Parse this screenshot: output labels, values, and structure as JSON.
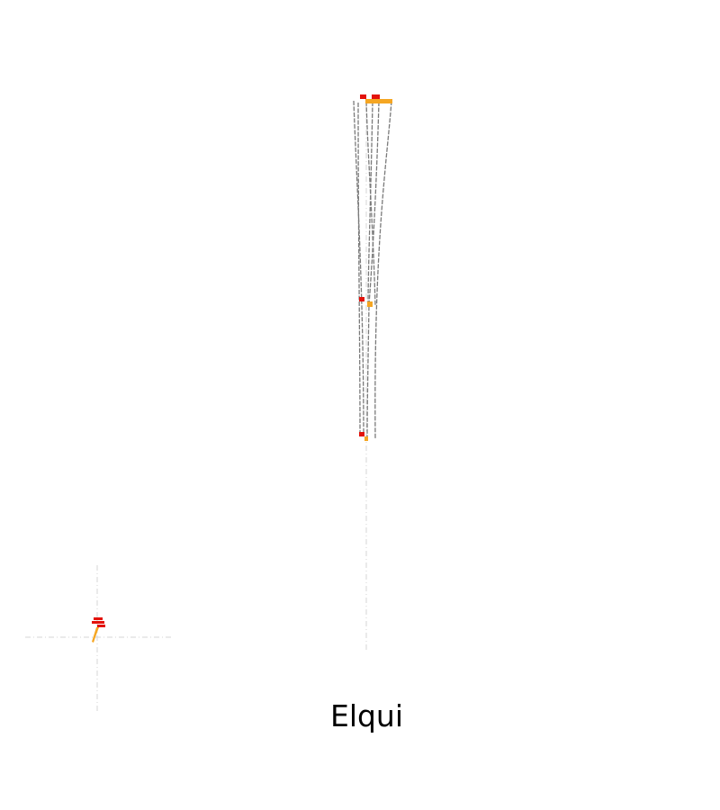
{
  "caption": "Elqui",
  "colors": {
    "strand": "#7a7a7a",
    "marker_red": "#e3120b",
    "marker_orange": "#f5a623",
    "axis": "#d6d6d6",
    "background": "#ffffff"
  }
}
